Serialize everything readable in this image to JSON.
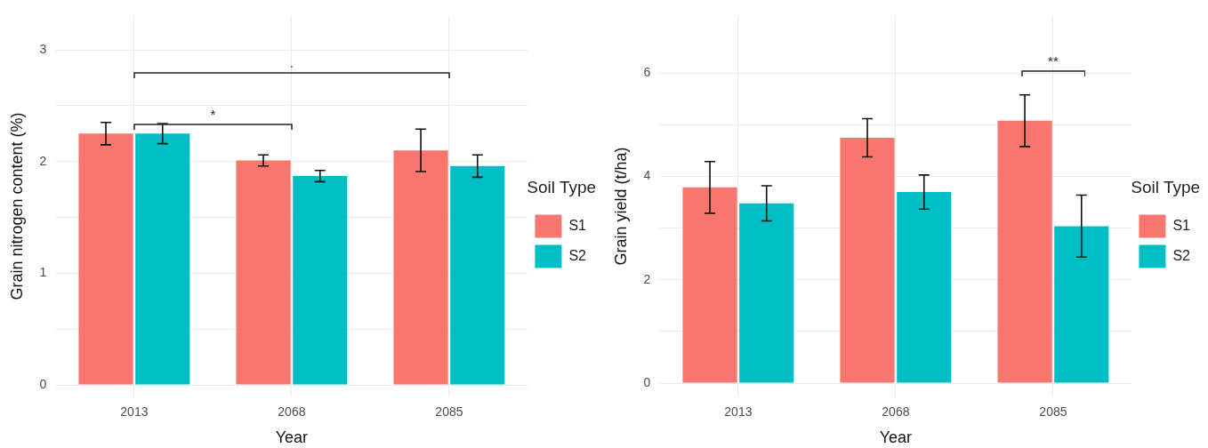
{
  "chart_data": [
    {
      "type": "bar",
      "xlabel": "Year",
      "ylabel": "Grain nitrogen content (%)",
      "legend_title": "Soil Type",
      "legend": "right",
      "grid": true,
      "categories": [
        "2013",
        "2068",
        "2085"
      ],
      "series": [
        {
          "name": "S1",
          "color": "#f8766d",
          "values": [
            2.25,
            2.01,
            2.1
          ],
          "errors": [
            0.1,
            0.05,
            0.19
          ]
        },
        {
          "name": "S2",
          "color": "#00bfc4",
          "values": [
            2.25,
            1.87,
            1.96
          ],
          "errors": [
            0.09,
            0.05,
            0.1
          ]
        }
      ],
      "ylim": [
        -0.1,
        3.3
      ],
      "yticks": [
        0,
        {
          "value": 0.5,
          "label": null
        },
        1,
        {
          "value": 1.5,
          "label": null
        },
        2,
        {
          "value": 2.5,
          "label": null
        },
        3
      ],
      "annotations": [
        ".",
        "*"
      ]
    },
    {
      "type": "bar",
      "xlabel": "Year",
      "ylabel": "Grain yield (t/ha)",
      "legend_title": "Soil Type",
      "legend": "right",
      "grid": true,
      "categories": [
        "2013",
        "2068",
        "2085"
      ],
      "series": [
        {
          "name": "S1",
          "color": "#f8766d",
          "values": [
            3.79,
            4.75,
            5.08
          ],
          "errors": [
            0.5,
            0.37,
            0.5
          ]
        },
        {
          "name": "S2",
          "color": "#00bfc4",
          "values": [
            3.48,
            3.7,
            3.04
          ],
          "errors": [
            0.34,
            0.33,
            0.6
          ]
        }
      ],
      "ylim": [
        -0.25,
        7.1
      ],
      "yticks": [
        0,
        {
          "value": 1,
          "label": null
        },
        2,
        {
          "value": 3,
          "label": null
        },
        4,
        {
          "value": 5,
          "label": null
        },
        6
      ],
      "annotations": [
        "**"
      ]
    }
  ]
}
